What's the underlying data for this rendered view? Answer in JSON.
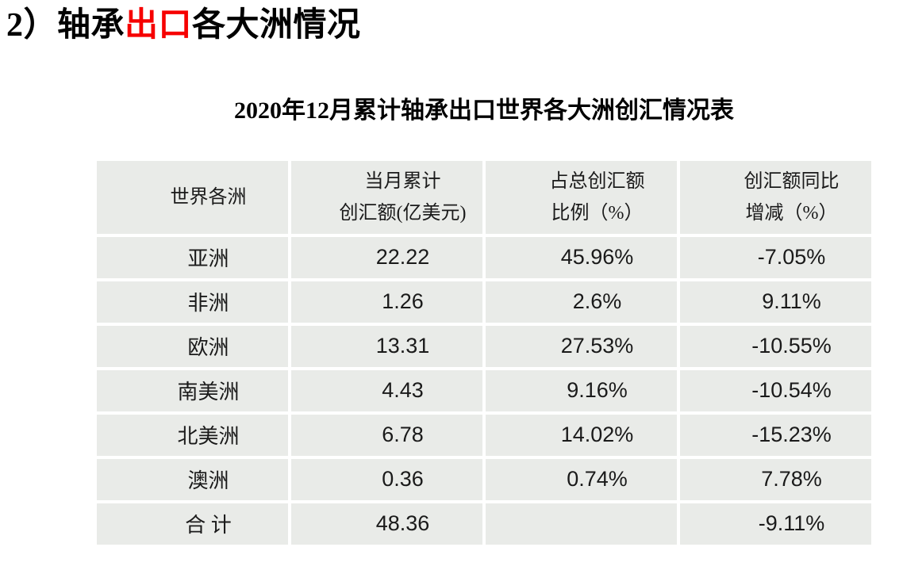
{
  "slide": {
    "heading": {
      "part1": "2）轴承",
      "part2_red": "出口",
      "part3": "各大洲情况"
    },
    "table_title": "2020年12月累计轴承出口世界各大洲创汇情况表",
    "colors": {
      "accent_red": "#f60000",
      "cell_bg": "#e9ebe8",
      "grid_gap": "#ffffff",
      "text": "#1a1a1a"
    }
  },
  "table": {
    "headers": [
      {
        "line1": "世界各洲",
        "line2": ""
      },
      {
        "line1": "当月累计",
        "line2": "创汇额(亿美元)"
      },
      {
        "line1": "占总创汇额",
        "line2": "比例（%）"
      },
      {
        "line1": "创汇额同比",
        "line2": "增减（%）"
      }
    ],
    "rows": [
      {
        "continent": "亚洲",
        "amount": "22.22",
        "share": "45.96%",
        "yoy": "-7.05%"
      },
      {
        "continent": "非洲",
        "amount": "1.26",
        "share": "2.6%",
        "yoy": "9.11%"
      },
      {
        "continent": "欧洲",
        "amount": "13.31",
        "share": "27.53%",
        "yoy": "-10.55%"
      },
      {
        "continent": "南美洲",
        "amount": "4.43",
        "share": "9.16%",
        "yoy": "-10.54%"
      },
      {
        "continent": "北美洲",
        "amount": "6.78",
        "share": "14.02%",
        "yoy": "-15.23%"
      },
      {
        "continent": "澳洲",
        "amount": "0.36",
        "share": "0.74%",
        "yoy": "7.78%"
      },
      {
        "continent": "合 计",
        "amount": "48.36",
        "share": "",
        "yoy": "-9.11%"
      }
    ]
  }
}
